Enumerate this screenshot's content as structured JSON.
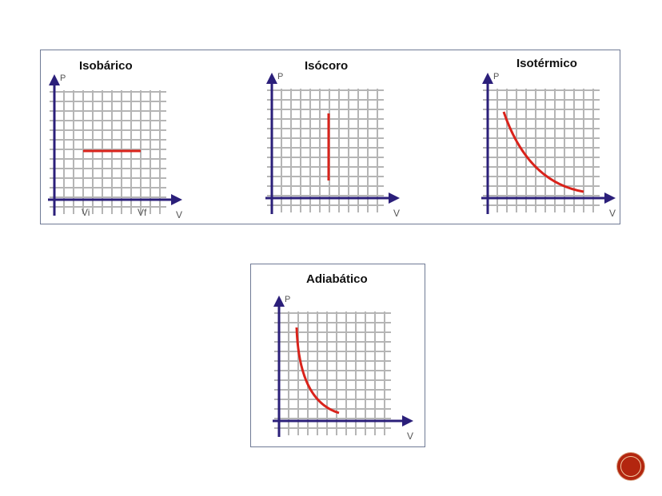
{
  "diagrams": [
    {
      "title": "Isobárico",
      "y_label": "P",
      "x_label": "V",
      "x_ticks": [
        "Vi",
        "Vf"
      ],
      "process": "constant-pressure"
    },
    {
      "title": "Isócoro",
      "y_label": "P",
      "x_label": "V",
      "process": "constant-volume"
    },
    {
      "title": "Isotérmico",
      "y_label": "P",
      "x_label": "V",
      "process": "isotherm"
    },
    {
      "title": "Adiabático",
      "y_label": "P",
      "x_label": "V",
      "process": "adiabat"
    }
  ],
  "colors": {
    "axis": "#2b1f7a",
    "grid": "#b5b5b5",
    "curve": "#d9231b",
    "border": "#6f7a95",
    "badge": "#b3260f"
  }
}
